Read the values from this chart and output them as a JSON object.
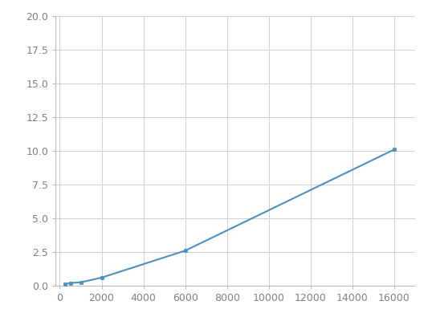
{
  "x": [
    250,
    500,
    1000,
    2000,
    6000,
    16000
  ],
  "y": [
    0.1,
    0.2,
    0.25,
    0.6,
    2.6,
    10.1
  ],
  "line_color": "#4E90C0",
  "marker": "s",
  "marker_size": 3.5,
  "marker_color": "#4E90C0",
  "xlim": [
    -200,
    17000
  ],
  "ylim": [
    0.0,
    20.0
  ],
  "xticks": [
    0,
    2000,
    4000,
    6000,
    8000,
    10000,
    12000,
    14000,
    16000
  ],
  "yticks": [
    0.0,
    2.5,
    5.0,
    7.5,
    10.0,
    12.5,
    15.0,
    17.5,
    20.0
  ],
  "grid_color": "#D0D0D0",
  "background_color": "#FFFFFF",
  "line_width": 1.5,
  "spine_color": "#BBBBBB",
  "tick_label_color": "#808080",
  "tick_label_size": 9
}
